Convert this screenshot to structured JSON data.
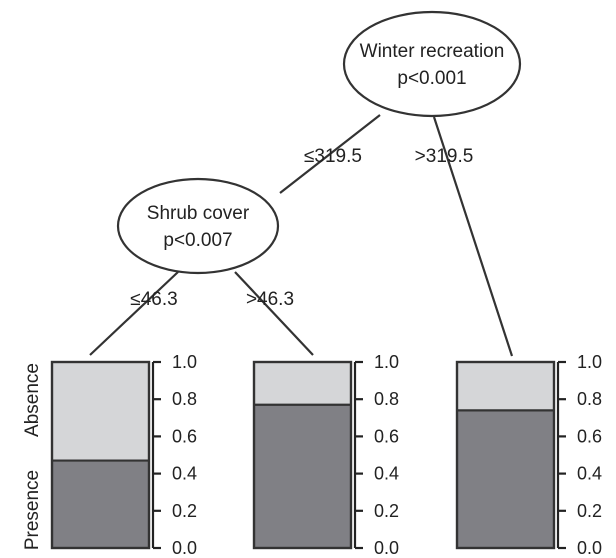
{
  "tree": {
    "root": {
      "title": "Winter recreation",
      "pvalue": "p<0.001"
    },
    "child": {
      "title": "Shrub cover",
      "pvalue": "p<0.007"
    },
    "edges": {
      "root_left": "≤319.5",
      "root_right": ">319.5",
      "child_left": "≤46.3",
      "child_right": ">46.3"
    }
  },
  "chart_data": {
    "type": "bar",
    "stacked": true,
    "categories": [
      "≤46.3",
      ">46.3",
      ">319.5"
    ],
    "series": [
      {
        "name": "Presence",
        "values": [
          0.47,
          0.77,
          0.74
        ]
      },
      {
        "name": "Absence",
        "values": [
          0.53,
          0.23,
          0.26
        ]
      }
    ],
    "ylim": [
      0,
      1
    ],
    "yticks": [
      "0.0",
      "0.2",
      "0.4",
      "0.6",
      "0.8",
      "1.0"
    ],
    "ylabel_top": "Absence",
    "ylabel_bottom": "Presence",
    "colors": {
      "presence": "#808085",
      "absence": "#d5d6d8"
    }
  }
}
